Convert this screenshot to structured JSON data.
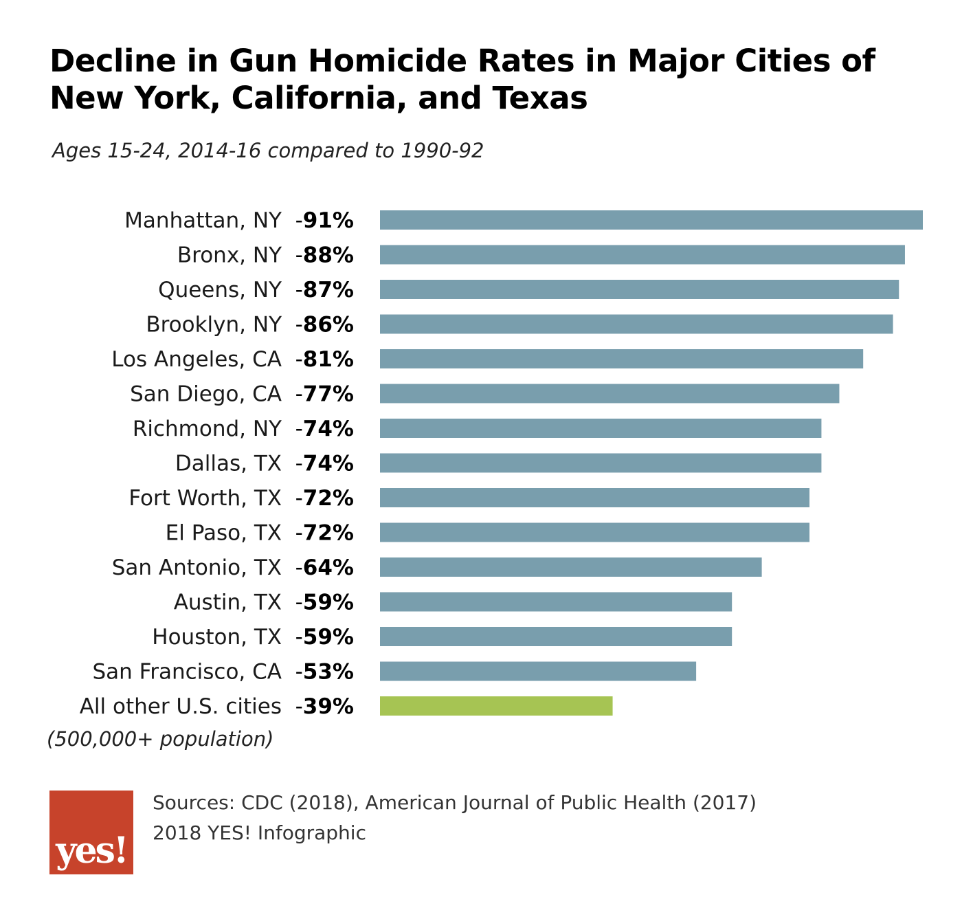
{
  "header": {
    "title": "Decline in Gun Homicide Rates in Major Cities of New York, California, and Texas",
    "subtitle": "Ages 15-24, 2014-16 compared to 1990-92"
  },
  "chart_data": {
    "type": "bar",
    "orientation": "horizontal",
    "title": "Decline in Gun Homicide Rates in Major Cities of New York, California, and Texas",
    "subtitle": "Ages 15-24, 2014-16 compared to 1990-92",
    "categories": [
      "Manhattan, NY",
      "Bronx, NY",
      "Queens, NY",
      "Brooklyn, NY",
      "Los Angeles, CA",
      "San Diego, CA",
      "Richmond, NY",
      "Dallas, TX",
      "Fort Worth, TX",
      "El Paso, TX",
      "San Antonio, TX",
      "Austin, TX",
      "Houston, TX",
      "San Francisco, CA",
      "All other U.S. cities"
    ],
    "values": [
      -91,
      -88,
      -87,
      -86,
      -81,
      -77,
      -74,
      -74,
      -72,
      -72,
      -64,
      -59,
      -59,
      -53,
      -39
    ],
    "value_labels": [
      "-91%",
      "-88%",
      "-87%",
      "-86%",
      "-81%",
      "-77%",
      "-74%",
      "-74%",
      "-72%",
      "-72%",
      "-64%",
      "-59%",
      "-59%",
      "-53%",
      "-39%"
    ],
    "colors": {
      "default": "#799ead",
      "highlight": "#a6c453"
    },
    "highlight_index": 14,
    "grid": false,
    "legend": "none"
  },
  "footnote": "(500,000+ population)",
  "sources": {
    "line1": "Sources: CDC (2018), American Journal of Public Health (2017)",
    "line2": "2018 YES! Infographic"
  },
  "logo": {
    "text": "yes!",
    "color": "#c7432b"
  }
}
